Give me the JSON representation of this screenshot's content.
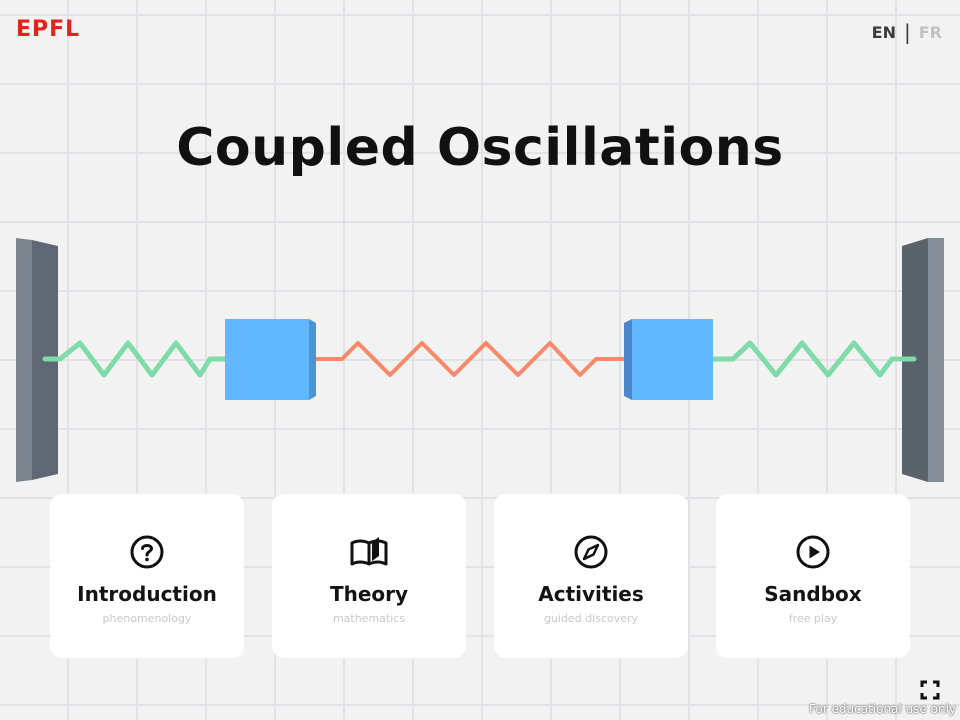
{
  "header": {
    "logo": "EPFL",
    "lang_en": "EN",
    "lang_separator": "|",
    "lang_fr": "FR"
  },
  "title": "Coupled Oscillations",
  "cards": [
    {
      "label": "Introduction",
      "sub": "phenomenology",
      "icon": "question-circle-icon"
    },
    {
      "label": "Theory",
      "sub": "mathematics",
      "icon": "open-book-icon"
    },
    {
      "label": "Activities",
      "sub": "guided discovery",
      "icon": "compass-icon"
    },
    {
      "label": "Sandbox",
      "sub": "free play",
      "icon": "play-circle-icon"
    }
  ],
  "footer": "For educational use only",
  "colors": {
    "accent": "#e2231a",
    "block": "#62b8ff",
    "outer_spring": "#7fdba8",
    "middle_spring": "#f5896a",
    "wall": "#5f6873"
  }
}
